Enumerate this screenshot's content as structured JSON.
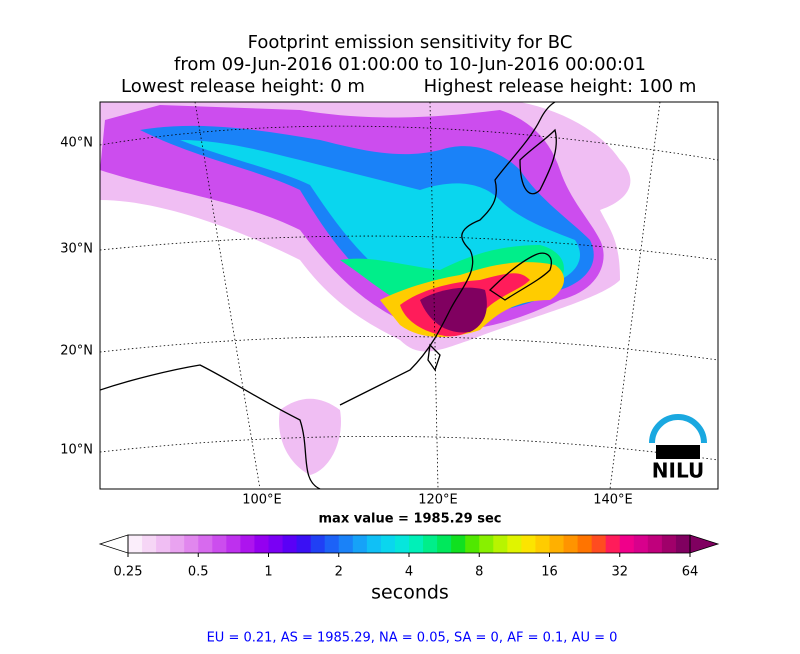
{
  "title": [
    "Footprint emission sensitivity for BC",
    "from 09-Jun-2016 01:00:00 to 10-Jun-2016 00:00:01",
    "Lowest release height: 0 m",
    "Highest release height: 100 m"
  ],
  "map": {
    "lat_labels": [
      "40°N",
      "30°N",
      "20°N",
      "10°N"
    ],
    "lon_labels": [
      "100°E",
      "120°E",
      "140°E"
    ],
    "max_value_text": "max value = 1985.29 sec",
    "logo": "NILU"
  },
  "colorbar": {
    "scale": "log",
    "lim": [
      0.25,
      64
    ],
    "ticks": [
      0.25,
      0.5,
      1,
      2,
      4,
      8,
      16,
      32,
      64
    ],
    "label": "seconds",
    "colors": [
      "#fbeefb",
      "#f6d6f6",
      "#f0bef3",
      "#e9a3f0",
      "#e187ee",
      "#d76aee",
      "#cc4dee",
      "#be30ee",
      "#ad14ee",
      "#9400f0",
      "#7a00f4",
      "#5a00f6",
      "#3a10f4",
      "#2040f5",
      "#1c62f7",
      "#1a82f8",
      "#16a2f8",
      "#10c0f6",
      "#0ad6ee",
      "#06e6dc",
      "#00f0b8",
      "#00ee8a",
      "#00e85c",
      "#10e020",
      "#50e800",
      "#88f000",
      "#b8f400",
      "#e0f400",
      "#fce400",
      "#ffcc00",
      "#ffb000",
      "#ff9400",
      "#ff7400",
      "#ff4c20",
      "#ff1c5a",
      "#f0008a",
      "#d8008c",
      "#c0007c",
      "#a0006a",
      "#800060"
    ]
  },
  "footer": "EU = 0.21,  AS = 1985.29,  NA = 0.05,  SA = 0,  AF = 0.1,  AU = 0"
}
